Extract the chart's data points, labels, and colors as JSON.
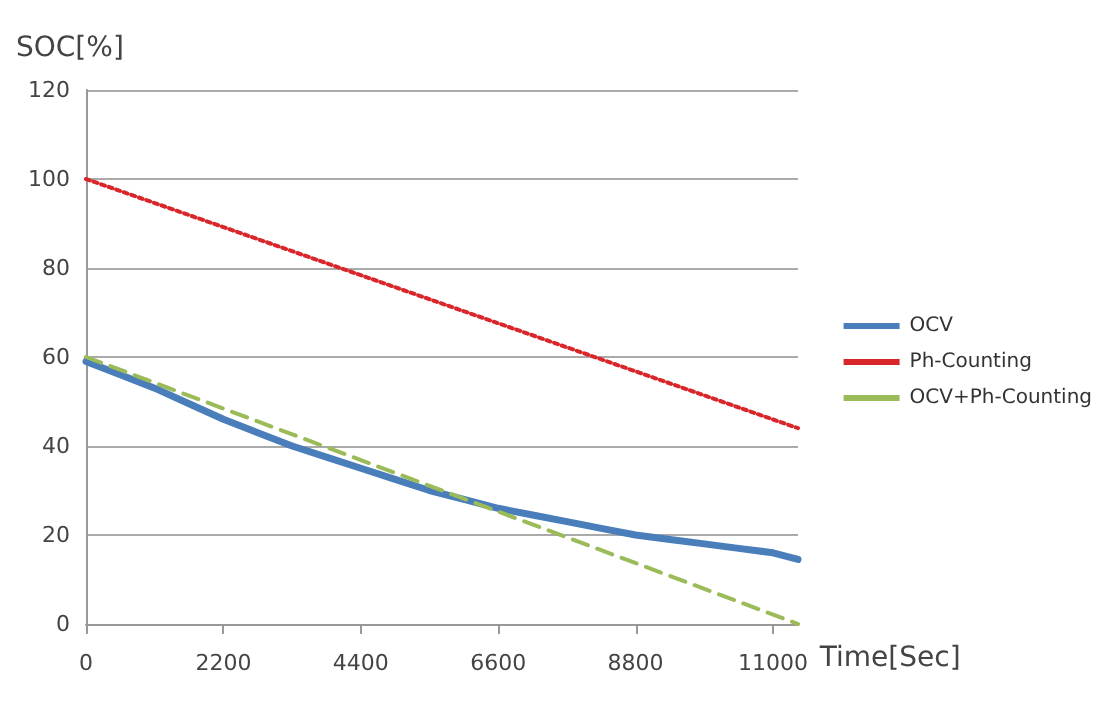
{
  "chart_data": {
    "type": "line",
    "xlabel": "Time[Sec]",
    "ylabel": "SOC[%]",
    "xlim": [
      0,
      11400
    ],
    "xticks": [
      0,
      2200,
      4400,
      6600,
      8800,
      11000
    ],
    "ylim": [
      0,
      120
    ],
    "yticks": [
      0,
      20,
      40,
      60,
      80,
      100,
      120
    ],
    "grid": "y",
    "legend": "right",
    "marker": "none",
    "series": [
      {
        "name": "OCV",
        "color": "#4a7ebb",
        "line_style": "solid",
        "x": [
          0,
          550,
          1100,
          1650,
          2200,
          2750,
          3300,
          3850,
          4400,
          4950,
          5500,
          6050,
          6600,
          7150,
          7700,
          8250,
          8800,
          9350,
          9900,
          10450,
          11000,
          11400
        ],
        "values": [
          59,
          56,
          53,
          49.5,
          46,
          43,
          40,
          37.5,
          35,
          32.5,
          30,
          28,
          26,
          24.5,
          23,
          21.5,
          20,
          19,
          18,
          17,
          16,
          14.5
        ]
      },
      {
        "name": "Ph-Counting",
        "color": "#d9262b",
        "line_style": "dotted",
        "x": [
          0,
          11400
        ],
        "values": [
          100,
          44
        ]
      },
      {
        "name": "OCV+Ph-Counting",
        "color": "#9bbb59",
        "line_style": "dashed",
        "x": [
          0,
          11400
        ],
        "values": [
          60,
          0
        ]
      }
    ]
  }
}
